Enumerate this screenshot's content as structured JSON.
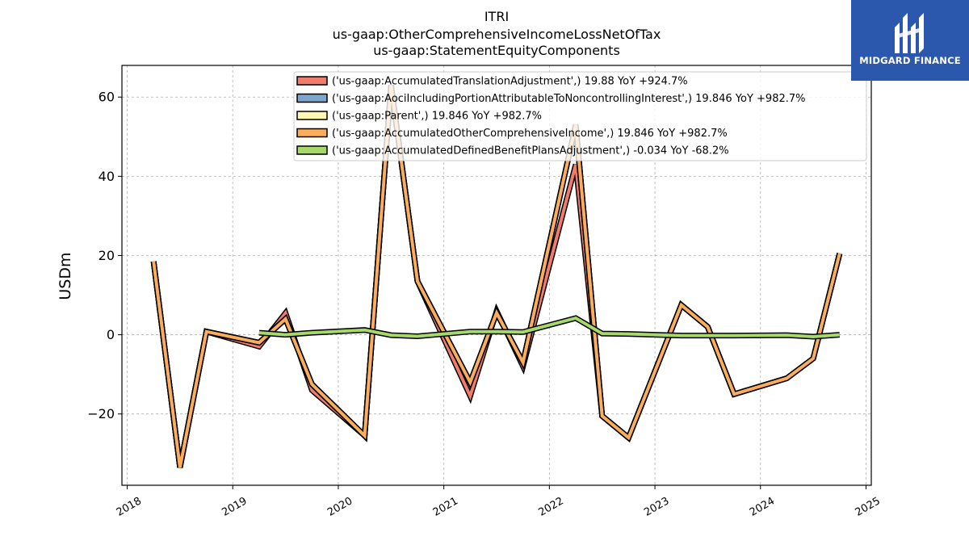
{
  "chart_data": {
    "type": "line",
    "title_lines": [
      "ITRI",
      "us-gaap:OtherComprehensiveIncomeLossNetOfTax",
      "us-gaap:StatementEquityComponents"
    ],
    "xlabel": "",
    "ylabel": "USDm",
    "xlim": [
      2017.95,
      2025.05
    ],
    "ylim": [
      -38,
      68
    ],
    "x_ticks": [
      2018,
      2019,
      2020,
      2021,
      2022,
      2023,
      2024,
      2025
    ],
    "y_ticks": [
      -20,
      0,
      20,
      40,
      60
    ],
    "y_tick_labels": [
      "−20",
      "0",
      "20",
      "40",
      "60"
    ],
    "grid": true,
    "legend_position": "upper-right",
    "series": [
      {
        "name": "('us-gaap:AccumulatedTranslationAdjustment',) 19.88 YoY +924.7%",
        "color": "#f07c6e",
        "x": [
          2018.25,
          2018.5,
          2018.75,
          2019.25,
          2019.5,
          2019.75,
          2020.25,
          2020.5,
          2020.75,
          2021.25,
          2021.5,
          2021.75,
          2022.25,
          2022.5,
          2022.75,
          2023.25,
          2023.5,
          2023.75,
          2024.25,
          2024.5,
          2024.75
        ],
        "values": [
          18.5,
          -33.5,
          0.8,
          -3.0,
          5.5,
          -14.0,
          -25.5,
          63.0,
          13.5,
          -15.5,
          6.0,
          -8.0,
          43.0,
          -20.5,
          -26.0,
          7.5,
          2.0,
          -15.0,
          -11.0,
          -6.0,
          20.5
        ]
      },
      {
        "name": "('us-gaap:AociIncludingPortionAttributableToNoncontrollingInterest',) 19.846 YoY +982.7%",
        "color": "#7ba7cf",
        "x": [
          2018.25,
          2018.5,
          2018.75,
          2019.25,
          2019.5,
          2019.75,
          2020.25,
          2020.5,
          2020.75,
          2021.25,
          2021.5,
          2021.75,
          2022.25,
          2022.5,
          2022.75,
          2023.25,
          2023.5,
          2023.75,
          2024.25,
          2024.5,
          2024.75
        ],
        "values": [
          18.5,
          -33.5,
          0.8,
          -2.0,
          4.0,
          -12.5,
          -25.5,
          63.0,
          13.5,
          -12.0,
          5.5,
          -7.0,
          53.0,
          -20.5,
          -26.0,
          7.5,
          2.0,
          -15.0,
          -11.0,
          -6.0,
          20.5
        ]
      },
      {
        "name": "('us-gaap:Parent',) 19.846 YoY +982.7%",
        "color": "#fff7b3",
        "x": [
          2018.25,
          2018.5,
          2018.75,
          2019.25,
          2019.5,
          2019.75,
          2020.25,
          2020.5,
          2020.75,
          2021.25,
          2021.5,
          2021.75,
          2022.25,
          2022.5,
          2022.75,
          2023.25,
          2023.5,
          2023.75,
          2024.25,
          2024.5,
          2024.75
        ],
        "values": [
          18.5,
          -33.5,
          0.8,
          -2.0,
          4.0,
          -12.5,
          -25.5,
          63.0,
          13.5,
          -12.0,
          5.5,
          -7.0,
          53.0,
          -20.5,
          -26.0,
          7.5,
          2.0,
          -15.0,
          -11.0,
          -6.0,
          20.5
        ]
      },
      {
        "name": "('us-gaap:AccumulatedOtherComprehensiveIncome',) 19.846 YoY +982.7%",
        "color": "#fbad5e",
        "x": [
          2018.25,
          2018.5,
          2018.75,
          2019.25,
          2019.5,
          2019.75,
          2020.25,
          2020.5,
          2020.75,
          2021.25,
          2021.5,
          2021.75,
          2022.25,
          2022.5,
          2022.75,
          2023.25,
          2023.5,
          2023.75,
          2024.25,
          2024.5,
          2024.75
        ],
        "values": [
          18.5,
          -33.5,
          0.8,
          -2.0,
          4.0,
          -12.5,
          -25.5,
          63.0,
          13.5,
          -12.0,
          5.5,
          -7.0,
          53.0,
          -20.5,
          -26.0,
          7.5,
          2.0,
          -15.0,
          -11.0,
          -6.0,
          20.5
        ]
      },
      {
        "name": "('us-gaap:AccumulatedDefinedBenefitPlansAdjustment',) -0.034 YoY -68.2%",
        "color": "#a6d96a",
        "x": [
          2019.25,
          2019.5,
          2019.75,
          2020.25,
          2020.5,
          2020.75,
          2021.25,
          2021.5,
          2021.75,
          2022.25,
          2022.5,
          2022.75,
          2023.25,
          2023.5,
          2023.75,
          2024.25,
          2024.5,
          2024.75
        ],
        "values": [
          0.5,
          0.0,
          0.5,
          1.2,
          -0.1,
          -0.4,
          0.8,
          0.8,
          0.7,
          4.2,
          0.3,
          0.2,
          -0.2,
          -0.2,
          -0.2,
          -0.1,
          -0.5,
          0.0
        ]
      }
    ]
  },
  "logo": {
    "text": "MIDGARD FINANCE",
    "background": "#2b58ad"
  }
}
